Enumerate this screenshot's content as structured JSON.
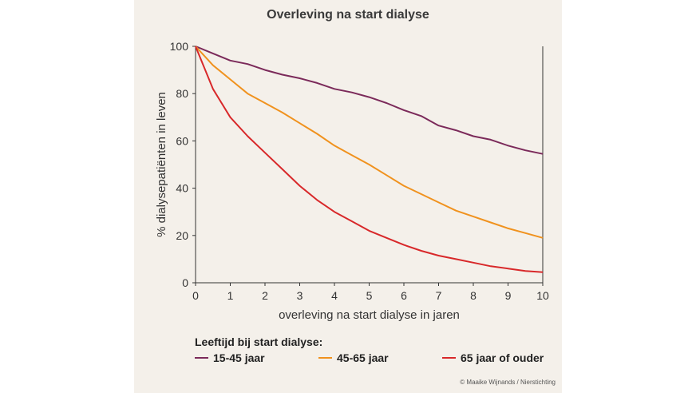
{
  "chart_data": {
    "type": "line",
    "title": "Overleving na start dialyse",
    "xlabel": "overleving na start dialyse in jaren",
    "ylabel": "% dialysepatiënten in leven",
    "xlim": [
      0,
      10
    ],
    "ylim": [
      0,
      100
    ],
    "xticks": [
      "0",
      "1",
      "2",
      "3",
      "4",
      "5",
      "6",
      "7",
      "8",
      "9",
      "10"
    ],
    "yticks": [
      "0",
      "20",
      "40",
      "60",
      "80",
      "100"
    ],
    "grid": false,
    "legend_title": "Leeftijd bij start dialyse:",
    "legend_position": "bottom",
    "series": [
      {
        "name": "15-45 jaar",
        "color": "#7b2a5a",
        "x": [
          0,
          0.5,
          1,
          1.5,
          2,
          2.5,
          3,
          3.5,
          4,
          4.5,
          5,
          5.5,
          6,
          6.5,
          7,
          7.5,
          8,
          8.5,
          9,
          9.5,
          10
        ],
        "y": [
          100,
          97,
          94,
          92.5,
          90,
          88,
          86.5,
          84.5,
          82,
          80.5,
          78.5,
          76,
          73,
          70.5,
          66.5,
          64.5,
          62,
          60.5,
          58,
          56,
          54.5
        ]
      },
      {
        "name": "45-65 jaar",
        "color": "#f0921e",
        "x": [
          0,
          0.5,
          1,
          1.5,
          2,
          2.5,
          3,
          3.5,
          4,
          4.5,
          5,
          5.5,
          6,
          6.5,
          7,
          7.5,
          8,
          8.5,
          9,
          9.5,
          10
        ],
        "y": [
          100,
          92,
          86,
          80,
          76,
          72,
          67.5,
          63,
          58,
          54,
          50,
          45.5,
          41,
          37.5,
          34,
          30.5,
          28,
          25.5,
          23,
          21,
          19
        ]
      },
      {
        "name": "65 jaar of ouder",
        "color": "#d8282a",
        "x": [
          0,
          0.5,
          1,
          1.5,
          2,
          2.5,
          3,
          3.5,
          4,
          4.5,
          5,
          5.5,
          6,
          6.5,
          7,
          7.5,
          8,
          8.5,
          9,
          9.5,
          10
        ],
        "y": [
          100,
          82,
          70,
          62,
          55,
          48,
          41,
          35,
          30,
          26,
          22,
          19,
          16,
          13.5,
          11.5,
          10,
          8.5,
          7,
          6,
          5,
          4.5
        ]
      }
    ]
  },
  "credit": "© Maaike Wijnands / Nierstichting"
}
